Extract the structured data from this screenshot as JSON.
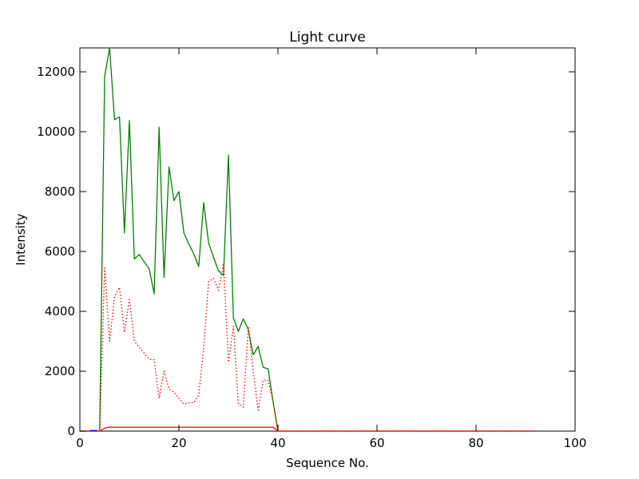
{
  "chart_data": {
    "type": "line",
    "title": "Light curve",
    "xlabel": "Sequence No.",
    "ylabel": "Intensity",
    "xlim": [
      0,
      100
    ],
    "ylim": [
      0,
      12800
    ],
    "xticks": [
      0,
      20,
      40,
      60,
      80,
      100
    ],
    "yticks": [
      0,
      2000,
      4000,
      6000,
      8000,
      10000,
      12000
    ],
    "grid": false,
    "legend": "none",
    "series": [
      {
        "color": "#008000",
        "style": "solid",
        "x": [
          0,
          1,
          2,
          3,
          4,
          5,
          6,
          7,
          8,
          9,
          10,
          11,
          12,
          13,
          14,
          15,
          16,
          17,
          18,
          19,
          20,
          21,
          22,
          23,
          24,
          25,
          26,
          27,
          28,
          29,
          30,
          31,
          32,
          33,
          34,
          35,
          36,
          37,
          38,
          39,
          40,
          45,
          50,
          55,
          60,
          65,
          70,
          75,
          80,
          85,
          91
        ],
        "y": [
          0,
          0,
          0,
          0,
          0,
          11850,
          12800,
          10400,
          10500,
          6620,
          10380,
          5750,
          5900,
          5650,
          5420,
          4580,
          10150,
          5130,
          8830,
          7700,
          8000,
          6620,
          6250,
          5920,
          5500,
          7630,
          6280,
          5800,
          5350,
          5200,
          9220,
          3780,
          3330,
          3750,
          3400,
          2550,
          2830,
          2130,
          2080,
          1000,
          0,
          0,
          0,
          0,
          0,
          0,
          0,
          0,
          0,
          0,
          0
        ]
      },
      {
        "color": "#ff0000",
        "style": "dotted",
        "x": [
          0,
          1,
          2,
          3,
          4,
          5,
          6,
          7,
          8,
          9,
          10,
          11,
          12,
          13,
          14,
          15,
          16,
          17,
          18,
          19,
          20,
          21,
          22,
          23,
          24,
          25,
          26,
          27,
          28,
          29,
          30,
          31,
          32,
          33,
          34,
          35,
          36,
          37,
          38,
          39,
          40,
          45,
          50,
          55,
          60,
          65,
          70,
          75,
          80,
          85,
          91
        ],
        "y": [
          0,
          0,
          0,
          0,
          0,
          5450,
          3000,
          4500,
          4800,
          3300,
          4400,
          3000,
          2800,
          2600,
          2400,
          2380,
          1100,
          2000,
          1400,
          1300,
          1100,
          900,
          950,
          950,
          1200,
          2800,
          5000,
          5100,
          4700,
          5600,
          2300,
          3500,
          900,
          800,
          3500,
          2000,
          700,
          1700,
          1700,
          1000,
          0,
          0,
          0,
          0,
          0,
          0,
          0,
          0,
          0,
          0,
          0
        ]
      },
      {
        "color": "#ff0000",
        "style": "solid",
        "x": [
          0,
          4,
          5,
          6,
          10,
          15,
          20,
          25,
          30,
          35,
          39,
          40,
          45,
          50,
          55,
          60,
          65,
          70,
          75,
          80,
          85,
          91
        ],
        "y": [
          0,
          0,
          100,
          130,
          130,
          130,
          130,
          130,
          130,
          130,
          130,
          0,
          0,
          0,
          0,
          0,
          0,
          0,
          0,
          0,
          0,
          0
        ]
      },
      {
        "color": "#0000ff",
        "style": "solid",
        "x": [
          2,
          3.5
        ],
        "y": [
          20,
          20
        ]
      }
    ]
  }
}
